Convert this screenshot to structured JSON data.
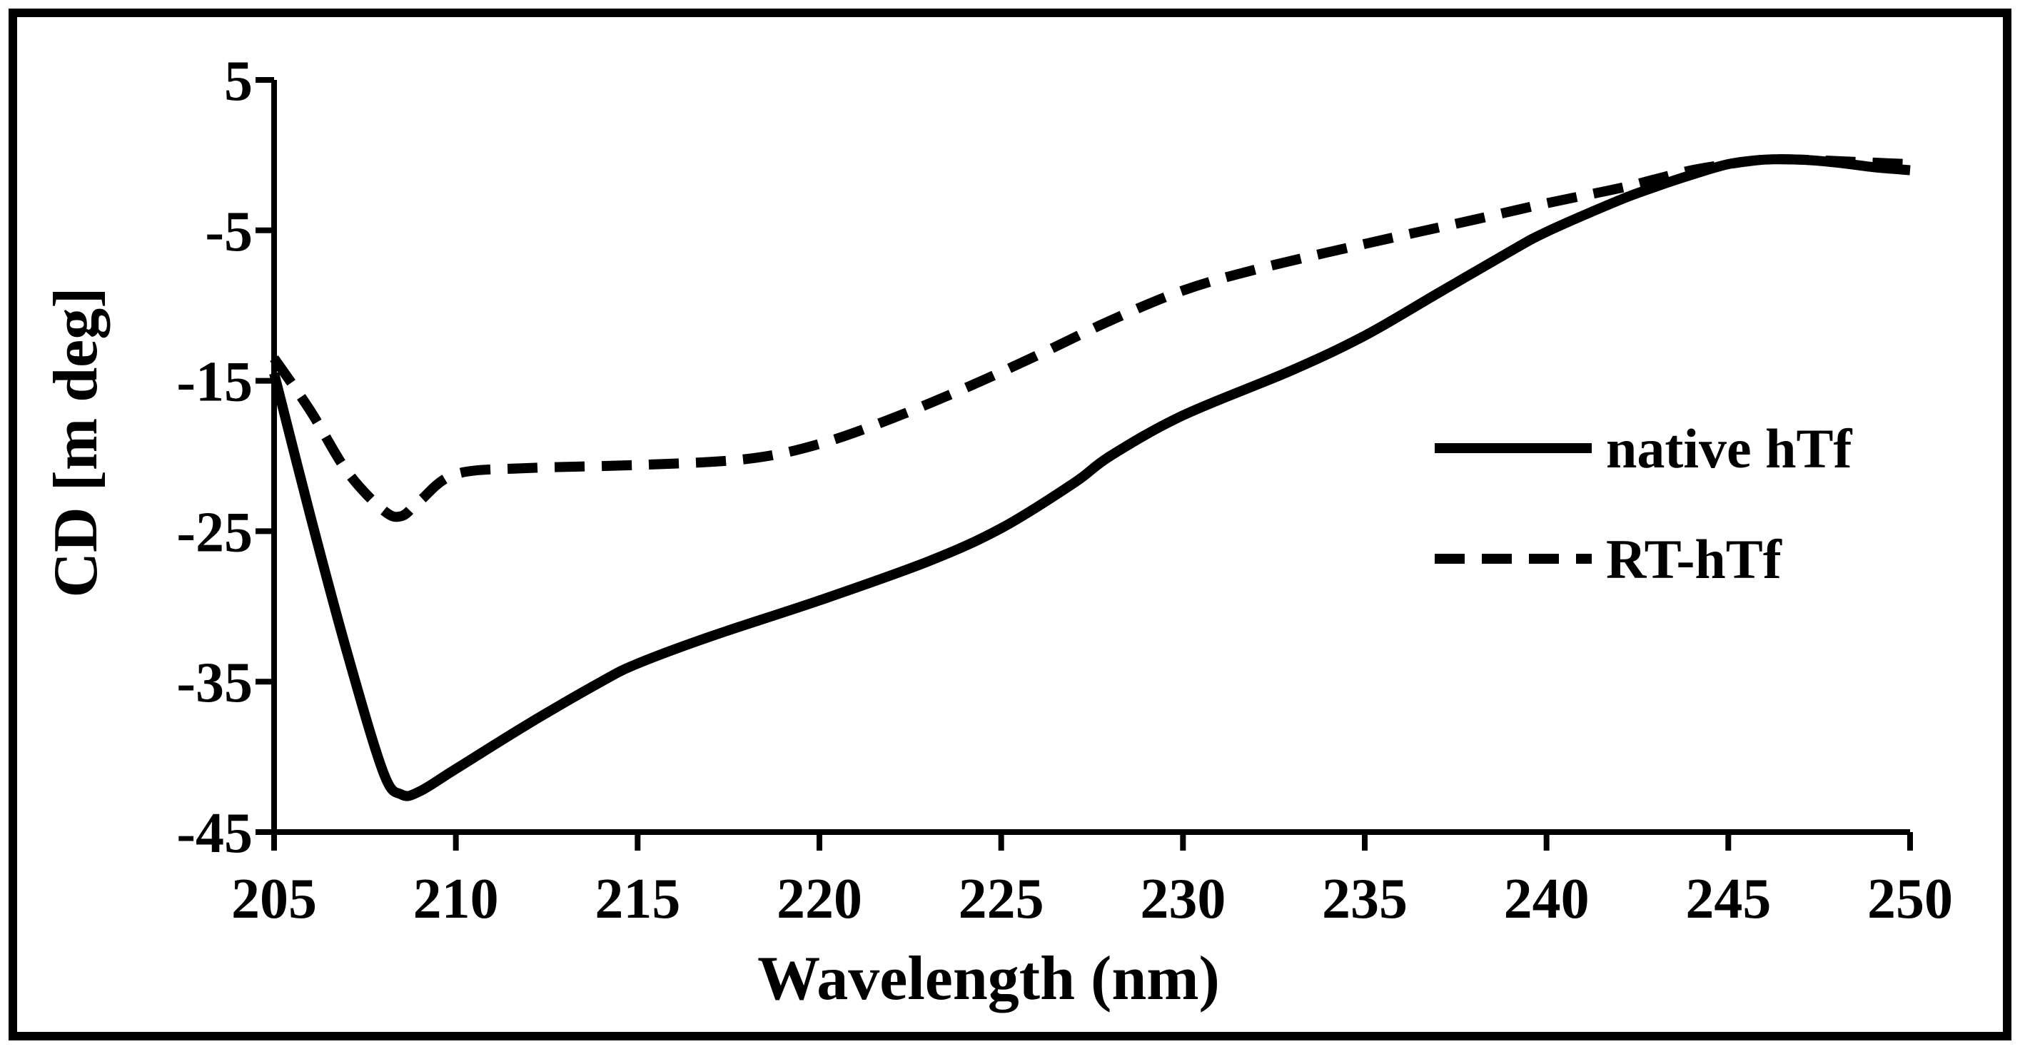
{
  "chart_data": {
    "type": "line",
    "title": "",
    "xlabel": "Wavelength (nm)",
    "ylabel": "CD [m deg]",
    "xlim": [
      205,
      250
    ],
    "ylim": [
      -45,
      5
    ],
    "xticks": [
      205,
      210,
      215,
      220,
      225,
      230,
      235,
      240,
      245,
      250
    ],
    "yticks": [
      5,
      -5,
      -15,
      -25,
      -35,
      -45
    ],
    "xtick_labels": [
      "205",
      "210",
      "215",
      "220",
      "225",
      "230",
      "235",
      "240",
      "245",
      "250"
    ],
    "ytick_labels": [
      "5",
      "-5",
      "-15",
      "-25",
      "-35",
      "-45"
    ],
    "grid": false,
    "legend_position": "right",
    "series": [
      {
        "name": "native hTf",
        "style": "solid",
        "color": "#000000",
        "x": [
          205,
          206,
          207,
          208,
          208.5,
          209,
          210,
          212,
          214,
          215,
          217,
          220,
          223,
          225,
          227,
          228,
          230,
          233,
          235,
          237,
          239,
          240,
          242,
          243,
          244,
          245,
          246,
          247,
          248,
          249,
          250
        ],
        "y": [
          -14.5,
          -24,
          -33,
          -41,
          -42.5,
          -42.3,
          -40.8,
          -37.8,
          -35.0,
          -33.8,
          -32.0,
          -29.6,
          -27.0,
          -24.8,
          -21.8,
          -20.0,
          -17.3,
          -14.3,
          -12.0,
          -9.2,
          -6.4,
          -5.1,
          -3.0,
          -2.1,
          -1.3,
          -0.6,
          -0.3,
          -0.3,
          -0.5,
          -0.8,
          -1.0
        ]
      },
      {
        "name": "RT-hTf",
        "style": "dashed",
        "color": "#000000",
        "x": [
          205,
          206,
          207,
          208,
          208.5,
          209,
          210,
          212,
          215,
          218,
          220,
          222,
          224,
          226,
          228,
          230,
          232,
          235,
          238,
          240,
          242,
          243,
          244,
          245,
          246,
          247,
          248,
          249,
          250
        ],
        "y": [
          -13.5,
          -17,
          -21,
          -23.6,
          -24.0,
          -23.0,
          -21.2,
          -20.8,
          -20.6,
          -20.2,
          -19.2,
          -17.5,
          -15.5,
          -13.3,
          -11.0,
          -9.0,
          -7.6,
          -5.9,
          -4.3,
          -3.2,
          -2.2,
          -1.6,
          -1.0,
          -0.6,
          -0.3,
          -0.3,
          -0.4,
          -0.5,
          -0.6
        ]
      }
    ]
  }
}
